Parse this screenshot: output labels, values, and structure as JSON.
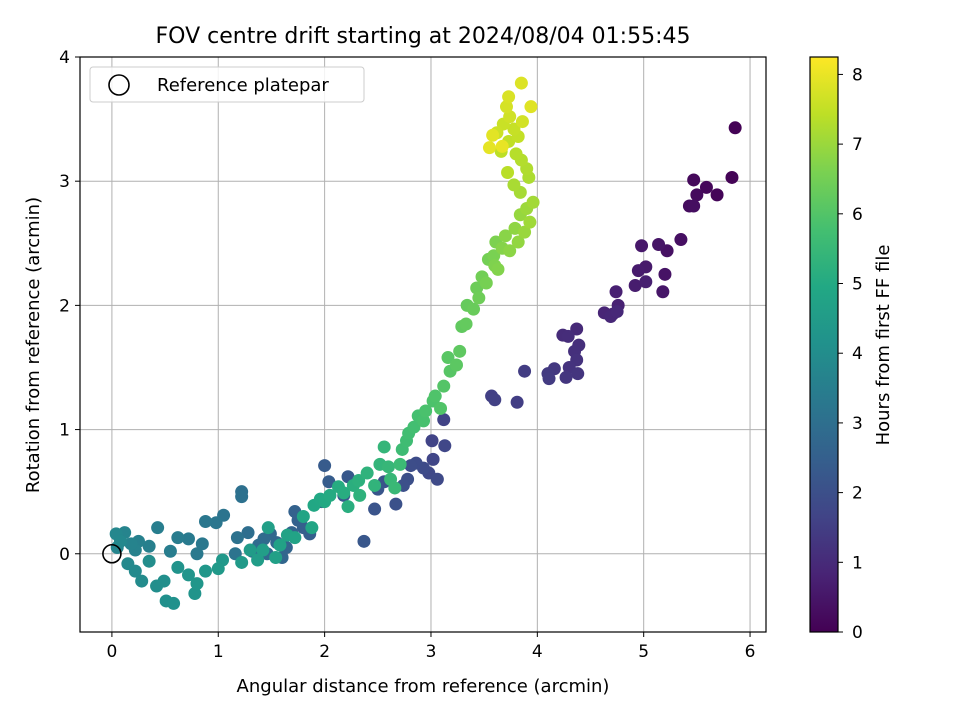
{
  "chart_data": {
    "type": "scatter",
    "title": "FOV centre drift starting at 2024/08/04 01:55:45",
    "xlabel": "Angular distance from reference (arcmin)",
    "ylabel": "Rotation from reference (arcmin)",
    "xlim": [
      -0.3,
      6.15
    ],
    "ylim": [
      -0.63,
      4.0
    ],
    "xticks": [
      0,
      1,
      2,
      3,
      4,
      5,
      6
    ],
    "yticks": [
      0,
      1,
      2,
      3,
      4
    ],
    "grid": true,
    "legend": {
      "placement": "top-left",
      "entries": [
        {
          "label": "Reference platepar",
          "marker": "open-circle"
        }
      ]
    },
    "reference_point": {
      "x": 0,
      "y": 0
    },
    "colorbar": {
      "label": "Hours from first FF file",
      "colormap": "viridis",
      "range": [
        0,
        8.25
      ],
      "ticks": [
        0,
        1,
        2,
        3,
        4,
        5,
        6,
        7,
        8
      ]
    },
    "point_format": [
      "x (arcmin)",
      "y (arcmin)",
      "hours from first FF file"
    ],
    "points": [
      [
        5.86,
        3.43,
        0.02
      ],
      [
        5.83,
        3.03,
        0.06
      ],
      [
        5.69,
        2.89,
        0.1
      ],
      [
        5.59,
        2.95,
        0.14
      ],
      [
        5.47,
        3.01,
        0.18
      ],
      [
        5.5,
        2.89,
        0.22
      ],
      [
        5.43,
        2.8,
        0.26
      ],
      [
        5.47,
        2.8,
        0.3
      ],
      [
        5.35,
        2.53,
        0.34
      ],
      [
        5.22,
        2.44,
        0.38
      ],
      [
        5.2,
        2.25,
        0.42
      ],
      [
        5.14,
        2.49,
        0.46
      ],
      [
        5.18,
        2.11,
        0.5
      ],
      [
        4.98,
        2.48,
        0.54
      ],
      [
        5.02,
        2.31,
        0.58
      ],
      [
        4.95,
        2.28,
        0.62
      ],
      [
        4.92,
        2.16,
        0.66
      ],
      [
        5.02,
        2.19,
        0.7
      ],
      [
        4.74,
        2.11,
        0.74
      ],
      [
        4.76,
        2.0,
        0.78
      ],
      [
        4.71,
        1.93,
        0.82
      ],
      [
        4.63,
        1.94,
        0.86
      ],
      [
        4.69,
        1.91,
        0.9
      ],
      [
        4.75,
        1.95,
        0.94
      ],
      [
        4.37,
        1.81,
        0.98
      ],
      [
        4.24,
        1.76,
        1.02
      ],
      [
        4.29,
        1.75,
        1.06
      ],
      [
        4.39,
        1.68,
        1.1
      ],
      [
        4.35,
        1.63,
        1.14
      ],
      [
        4.37,
        1.56,
        1.18
      ],
      [
        4.3,
        1.5,
        1.22
      ],
      [
        4.38,
        1.45,
        1.26
      ],
      [
        4.27,
        1.42,
        1.3
      ],
      [
        4.16,
        1.49,
        1.34
      ],
      [
        4.1,
        1.45,
        1.38
      ],
      [
        4.11,
        1.41,
        1.42
      ],
      [
        3.88,
        1.47,
        1.46
      ],
      [
        3.81,
        1.22,
        1.5
      ],
      [
        3.57,
        1.27,
        1.54
      ],
      [
        3.6,
        1.24,
        1.58
      ],
      [
        3.12,
        1.08,
        1.62
      ],
      [
        3.01,
        0.91,
        1.66
      ],
      [
        3.02,
        0.76,
        1.7
      ],
      [
        3.13,
        0.87,
        1.74
      ],
      [
        2.98,
        0.65,
        1.78
      ],
      [
        3.06,
        0.6,
        1.82
      ],
      [
        2.93,
        0.69,
        1.86
      ],
      [
        2.86,
        0.73,
        1.9
      ],
      [
        2.81,
        0.71,
        1.94
      ],
      [
        2.78,
        0.6,
        1.98
      ],
      [
        2.74,
        0.55,
        2.02
      ],
      [
        2.67,
        0.4,
        2.06
      ],
      [
        2.56,
        0.58,
        2.1
      ],
      [
        2.47,
        0.36,
        2.14
      ],
      [
        2.5,
        0.52,
        2.18
      ],
      [
        2.37,
        0.1,
        2.22
      ],
      [
        2.22,
        0.62,
        2.26
      ],
      [
        2.18,
        0.47,
        2.3
      ],
      [
        2.0,
        0.71,
        2.34
      ],
      [
        2.04,
        0.58,
        2.38
      ],
      [
        1.97,
        0.42,
        2.42
      ],
      [
        1.86,
        0.16,
        2.46
      ],
      [
        1.8,
        0.21,
        2.5
      ],
      [
        1.75,
        0.27,
        2.54
      ],
      [
        1.72,
        0.34,
        2.58
      ],
      [
        1.69,
        0.17,
        2.62
      ],
      [
        1.64,
        0.05,
        2.66
      ],
      [
        1.6,
        -0.03,
        2.7
      ],
      [
        1.55,
        0.09,
        2.74
      ],
      [
        1.49,
        0.16,
        2.78
      ],
      [
        1.46,
        0.0,
        2.82
      ],
      [
        1.43,
        0.12,
        2.86
      ],
      [
        1.38,
        0.07,
        2.9
      ],
      [
        1.32,
        0.02,
        2.94
      ],
      [
        1.28,
        0.17,
        2.98
      ],
      [
        1.22,
        0.5,
        3.02
      ],
      [
        1.22,
        0.46,
        3.06
      ],
      [
        1.18,
        0.13,
        3.1
      ],
      [
        1.16,
        0.0,
        3.14
      ],
      [
        1.05,
        0.31,
        3.18
      ],
      [
        0.98,
        0.25,
        3.22
      ],
      [
        0.88,
        0.26,
        3.26
      ],
      [
        0.85,
        0.08,
        3.3
      ],
      [
        0.8,
        -0.0,
        3.34
      ],
      [
        0.72,
        0.12,
        3.38
      ],
      [
        0.62,
        0.13,
        3.42
      ],
      [
        0.55,
        0.02,
        3.46
      ],
      [
        0.43,
        0.21,
        3.5
      ],
      [
        0.35,
        0.06,
        3.54
      ],
      [
        0.25,
        0.1,
        3.58
      ],
      [
        0.22,
        0.03,
        3.62
      ],
      [
        0.18,
        0.08,
        3.66
      ],
      [
        0.12,
        0.17,
        3.7
      ],
      [
        0.05,
        0.05,
        3.74
      ],
      [
        0.04,
        0.16,
        3.78
      ],
      [
        0.08,
        0.1,
        3.82
      ],
      [
        0.15,
        -0.08,
        3.86
      ],
      [
        0.22,
        -0.14,
        3.9
      ],
      [
        0.28,
        -0.22,
        3.94
      ],
      [
        0.35,
        -0.06,
        3.98
      ],
      [
        0.42,
        -0.26,
        4.02
      ],
      [
        0.49,
        -0.22,
        4.06
      ],
      [
        0.51,
        -0.38,
        4.1
      ],
      [
        0.58,
        -0.4,
        4.14
      ],
      [
        0.62,
        -0.11,
        4.18
      ],
      [
        0.78,
        -0.32,
        4.22
      ],
      [
        0.72,
        -0.17,
        4.26
      ],
      [
        0.8,
        -0.24,
        4.3
      ],
      [
        0.88,
        -0.14,
        4.34
      ],
      [
        1.04,
        -0.05,
        4.38
      ],
      [
        1.0,
        -0.12,
        4.42
      ],
      [
        1.22,
        -0.07,
        4.46
      ],
      [
        1.3,
        0.03,
        4.5
      ],
      [
        1.37,
        -0.05,
        4.54
      ],
      [
        1.42,
        0.03,
        4.58
      ],
      [
        1.47,
        0.21,
        4.62
      ],
      [
        1.54,
        -0.03,
        4.66
      ],
      [
        1.58,
        0.07,
        4.7
      ],
      [
        1.65,
        0.15,
        4.74
      ],
      [
        1.72,
        0.13,
        4.78
      ],
      [
        1.8,
        0.3,
        4.82
      ],
      [
        1.88,
        0.21,
        4.86
      ],
      [
        1.9,
        0.39,
        4.9
      ],
      [
        1.96,
        0.44,
        4.94
      ],
      [
        2.0,
        0.42,
        4.98
      ],
      [
        2.05,
        0.47,
        5.02
      ],
      [
        2.13,
        0.54,
        5.06
      ],
      [
        2.18,
        0.49,
        5.1
      ],
      [
        2.22,
        0.38,
        5.14
      ],
      [
        2.27,
        0.55,
        5.18
      ],
      [
        2.32,
        0.59,
        5.22
      ],
      [
        2.33,
        0.47,
        5.26
      ],
      [
        2.4,
        0.65,
        5.3
      ],
      [
        2.47,
        0.55,
        5.34
      ],
      [
        2.52,
        0.72,
        5.38
      ],
      [
        2.56,
        0.86,
        5.42
      ],
      [
        2.6,
        0.7,
        5.46
      ],
      [
        2.62,
        0.6,
        5.5
      ],
      [
        2.66,
        0.53,
        5.54
      ],
      [
        2.71,
        0.72,
        5.58
      ],
      [
        2.73,
        0.84,
        5.62
      ],
      [
        2.77,
        0.91,
        5.66
      ],
      [
        2.79,
        0.97,
        5.7
      ],
      [
        2.84,
        1.02,
        5.74
      ],
      [
        2.88,
        1.11,
        5.78
      ],
      [
        2.93,
        1.07,
        5.82
      ],
      [
        2.95,
        1.15,
        5.86
      ],
      [
        3.02,
        1.23,
        5.9
      ],
      [
        3.04,
        1.27,
        5.94
      ],
      [
        3.09,
        1.17,
        5.98
      ],
      [
        3.12,
        1.35,
        6.02
      ],
      [
        3.18,
        1.47,
        6.06
      ],
      [
        3.16,
        1.58,
        6.1
      ],
      [
        3.24,
        1.52,
        6.14
      ],
      [
        3.27,
        1.63,
        6.18
      ],
      [
        3.29,
        1.83,
        6.22
      ],
      [
        3.33,
        1.85,
        6.26
      ],
      [
        3.34,
        2.0,
        6.3
      ],
      [
        3.4,
        1.97,
        6.34
      ],
      [
        3.43,
        2.14,
        6.38
      ],
      [
        3.45,
        2.06,
        6.42
      ],
      [
        3.48,
        2.23,
        6.46
      ],
      [
        3.54,
        2.37,
        6.5
      ],
      [
        3.52,
        2.18,
        6.54
      ],
      [
        3.59,
        2.4,
        6.58
      ],
      [
        3.61,
        2.51,
        6.62
      ],
      [
        3.6,
        2.32,
        6.66
      ],
      [
        3.63,
        2.29,
        6.7
      ],
      [
        3.67,
        2.46,
        6.74
      ],
      [
        3.7,
        2.56,
        6.78
      ],
      [
        3.74,
        2.44,
        6.82
      ],
      [
        3.79,
        2.62,
        6.86
      ],
      [
        3.82,
        2.51,
        6.9
      ],
      [
        3.84,
        2.73,
        6.94
      ],
      [
        3.88,
        2.59,
        6.98
      ],
      [
        3.9,
        2.78,
        7.02
      ],
      [
        3.93,
        2.67,
        7.06
      ],
      [
        3.96,
        2.83,
        7.1
      ],
      [
        3.84,
        2.91,
        7.14
      ],
      [
        3.78,
        2.97,
        7.18
      ],
      [
        3.92,
        3.03,
        7.22
      ],
      [
        3.9,
        3.1,
        7.26
      ],
      [
        3.85,
        3.17,
        7.3
      ],
      [
        3.8,
        3.22,
        7.34
      ],
      [
        3.72,
        3.07,
        7.38
      ],
      [
        3.66,
        3.24,
        7.42
      ],
      [
        3.73,
        3.32,
        7.46
      ],
      [
        3.82,
        3.36,
        7.5
      ],
      [
        3.78,
        3.42,
        7.54
      ],
      [
        3.68,
        3.46,
        7.58
      ],
      [
        3.62,
        3.39,
        7.62
      ],
      [
        3.74,
        3.52,
        7.66
      ],
      [
        3.86,
        3.48,
        7.7
      ],
      [
        3.71,
        3.6,
        7.74
      ],
      [
        3.73,
        3.68,
        7.78
      ],
      [
        3.85,
        3.79,
        7.82
      ],
      [
        3.94,
        3.6,
        7.86
      ],
      [
        3.58,
        3.37,
        7.9
      ],
      [
        3.55,
        3.27,
        7.94
      ],
      [
        3.67,
        3.28,
        7.98
      ]
    ]
  }
}
